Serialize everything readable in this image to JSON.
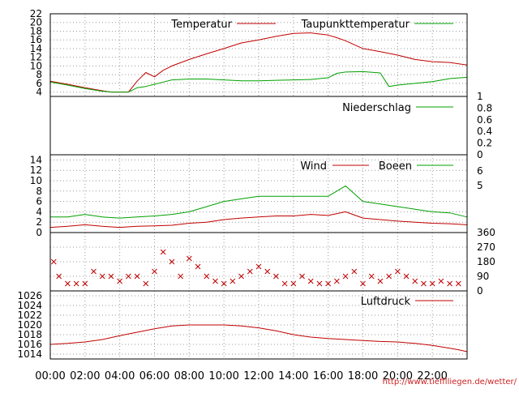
{
  "colors": {
    "red": "#c00000",
    "green": "#00a000",
    "grid": "#999999",
    "frame": "#000000",
    "credit": "#cc2222"
  },
  "x_axis": {
    "labels": [
      "00:00",
      "02:00",
      "04:00",
      "06:00",
      "08:00",
      "10:00",
      "12:00",
      "14:00",
      "16:00",
      "18:00",
      "20:00",
      "22:00"
    ],
    "unit": "hours",
    "range": [
      0,
      24
    ]
  },
  "credit_text": "http://www.tiefflliegen.de/wetter/",
  "chart_data": [
    {
      "id": "temperature",
      "type": "line",
      "y_ticks": [
        "22",
        "20",
        "18",
        "16",
        "14",
        "12",
        "10",
        "8",
        "6",
        "4"
      ],
      "ylim": [
        3,
        22
      ],
      "grid": true,
      "legend_position": "top",
      "series": [
        {
          "name": "Temperatur",
          "color": "#c00000",
          "x": [
            0,
            1,
            2,
            3,
            3.5,
            4,
            4.5,
            5,
            5.5,
            6,
            6.5,
            7,
            8,
            9,
            10,
            11,
            12,
            13,
            14,
            15,
            16,
            16.5,
            17,
            18,
            19,
            20,
            21,
            22,
            23,
            24
          ],
          "y": [
            6.5,
            5.8,
            5,
            4.3,
            4,
            4,
            4,
            6.5,
            8.5,
            7.5,
            9,
            10,
            11.5,
            12.8,
            14,
            15.3,
            16,
            16.8,
            17.5,
            17.6,
            17.1,
            16.5,
            15.8,
            14,
            13.3,
            12.5,
            11.5,
            11,
            10.8,
            10.2
          ]
        },
        {
          "name": "Taupunkttemperatur",
          "color": "#00a000",
          "x": [
            0,
            1,
            2,
            3,
            3.5,
            4,
            4.5,
            5,
            5.5,
            6,
            6.5,
            7,
            8,
            9,
            10,
            11,
            12,
            13,
            14,
            15,
            16,
            16.5,
            17,
            18,
            19,
            19.5,
            20,
            21,
            22,
            23,
            24
          ],
          "y": [
            6.3,
            5.6,
            4.8,
            4.2,
            4,
            4,
            4,
            5,
            5.3,
            5.8,
            6.3,
            6.8,
            7,
            7,
            6.8,
            6.6,
            6.6,
            6.7,
            6.8,
            6.9,
            7.3,
            8.3,
            8.6,
            8.7,
            8.4,
            5.3,
            5.6,
            6,
            6.4,
            7.1,
            7.4
          ]
        }
      ]
    },
    {
      "id": "precipitation",
      "type": "line",
      "right_ticks": [
        "1",
        "0.8",
        "0.6",
        "0.4",
        "0.2",
        "0"
      ],
      "ylim": [
        0,
        1
      ],
      "legend_position": "top-right",
      "series": [
        {
          "name": "Niederschlag",
          "color": "#00a000",
          "x": [
            0,
            24
          ],
          "y": [
            0,
            0
          ]
        }
      ]
    },
    {
      "id": "wind",
      "type": "line",
      "y_ticks": [
        "14",
        "12",
        "10",
        "8",
        "6",
        "4",
        "2",
        "0"
      ],
      "right_ticks": [
        "6",
        "5"
      ],
      "ylim": [
        0,
        15
      ],
      "grid": true,
      "legend_position": "top-right",
      "series": [
        {
          "name": "Wind",
          "color": "#c00000",
          "x": [
            0,
            1,
            2,
            3,
            4,
            5,
            6,
            7,
            8,
            9,
            10,
            11,
            12,
            13,
            14,
            15,
            16,
            17,
            18,
            19,
            20,
            21,
            22,
            23,
            24
          ],
          "y": [
            1,
            1.2,
            1.5,
            1.2,
            1,
            1.2,
            1.3,
            1.4,
            1.8,
            2,
            2.5,
            2.8,
            3,
            3.2,
            3.2,
            3.5,
            3.3,
            4,
            2.8,
            2.5,
            2.2,
            2,
            1.8,
            1.7,
            1.5
          ]
        },
        {
          "name": "Boeen",
          "color": "#00a000",
          "x": [
            0,
            1,
            2,
            3,
            4,
            5,
            6,
            7,
            8,
            9,
            10,
            11,
            12,
            13,
            14,
            15,
            16,
            17,
            18,
            19,
            20,
            21,
            22,
            23,
            24
          ],
          "y": [
            3,
            3,
            3.5,
            3,
            2.8,
            3,
            3.2,
            3.5,
            4,
            5,
            6,
            6.5,
            7,
            7,
            7,
            7,
            7,
            9,
            6,
            5.5,
            5,
            4.5,
            4,
            3.8,
            3
          ]
        }
      ]
    },
    {
      "id": "wind_direction",
      "type": "scatter",
      "right_ticks": [
        "360",
        "270",
        "180",
        "90",
        "0"
      ],
      "ylim": [
        0,
        360
      ],
      "grid": true,
      "series": [
        {
          "name": "",
          "color": "#c00000",
          "x": [
            0.2,
            0.5,
            1,
            1.5,
            2,
            2.5,
            3,
            3.5,
            4,
            4.5,
            5,
            5.5,
            6,
            6.5,
            7,
            7.5,
            8,
            8.5,
            9,
            9.5,
            10,
            10.5,
            11,
            11.5,
            12,
            12.5,
            13,
            13.5,
            14,
            14.5,
            15,
            15.5,
            16,
            16.5,
            17,
            17.5,
            18,
            18.5,
            19,
            19.5,
            20,
            20.5,
            21,
            21.5,
            22,
            22.5,
            23,
            23.5
          ],
          "y": [
            180,
            90,
            45,
            45,
            45,
            120,
            90,
            90,
            60,
            90,
            90,
            45,
            120,
            240,
            180,
            90,
            200,
            150,
            90,
            60,
            45,
            60,
            90,
            120,
            150,
            120,
            90,
            45,
            45,
            90,
            60,
            45,
            45,
            60,
            90,
            120,
            45,
            90,
            60,
            90,
            120,
            90,
            60,
            45,
            45,
            60,
            45,
            45
          ]
        }
      ]
    },
    {
      "id": "pressure",
      "type": "line",
      "y_ticks": [
        "1026",
        "1024",
        "1022",
        "1020",
        "1018",
        "1016",
        "1014"
      ],
      "ylim": [
        1013,
        1027
      ],
      "grid": true,
      "legend_position": "top-right",
      "series": [
        {
          "name": "Luftdruck",
          "color": "#c00000",
          "x": [
            0,
            1,
            2,
            3,
            4,
            5,
            6,
            7,
            8,
            9,
            10,
            11,
            12,
            13,
            14,
            15,
            16,
            17,
            18,
            19,
            20,
            21,
            22,
            23,
            23.5,
            24
          ],
          "y": [
            1016,
            1016.2,
            1016.5,
            1017,
            1017.8,
            1018.5,
            1019.2,
            1019.8,
            1020,
            1020,
            1020,
            1019.8,
            1019.4,
            1018.8,
            1018,
            1017.5,
            1017.2,
            1017,
            1016.8,
            1016.6,
            1016.5,
            1016.2,
            1015.8,
            1015.2,
            1014.9,
            1014.5
          ]
        }
      ]
    }
  ]
}
